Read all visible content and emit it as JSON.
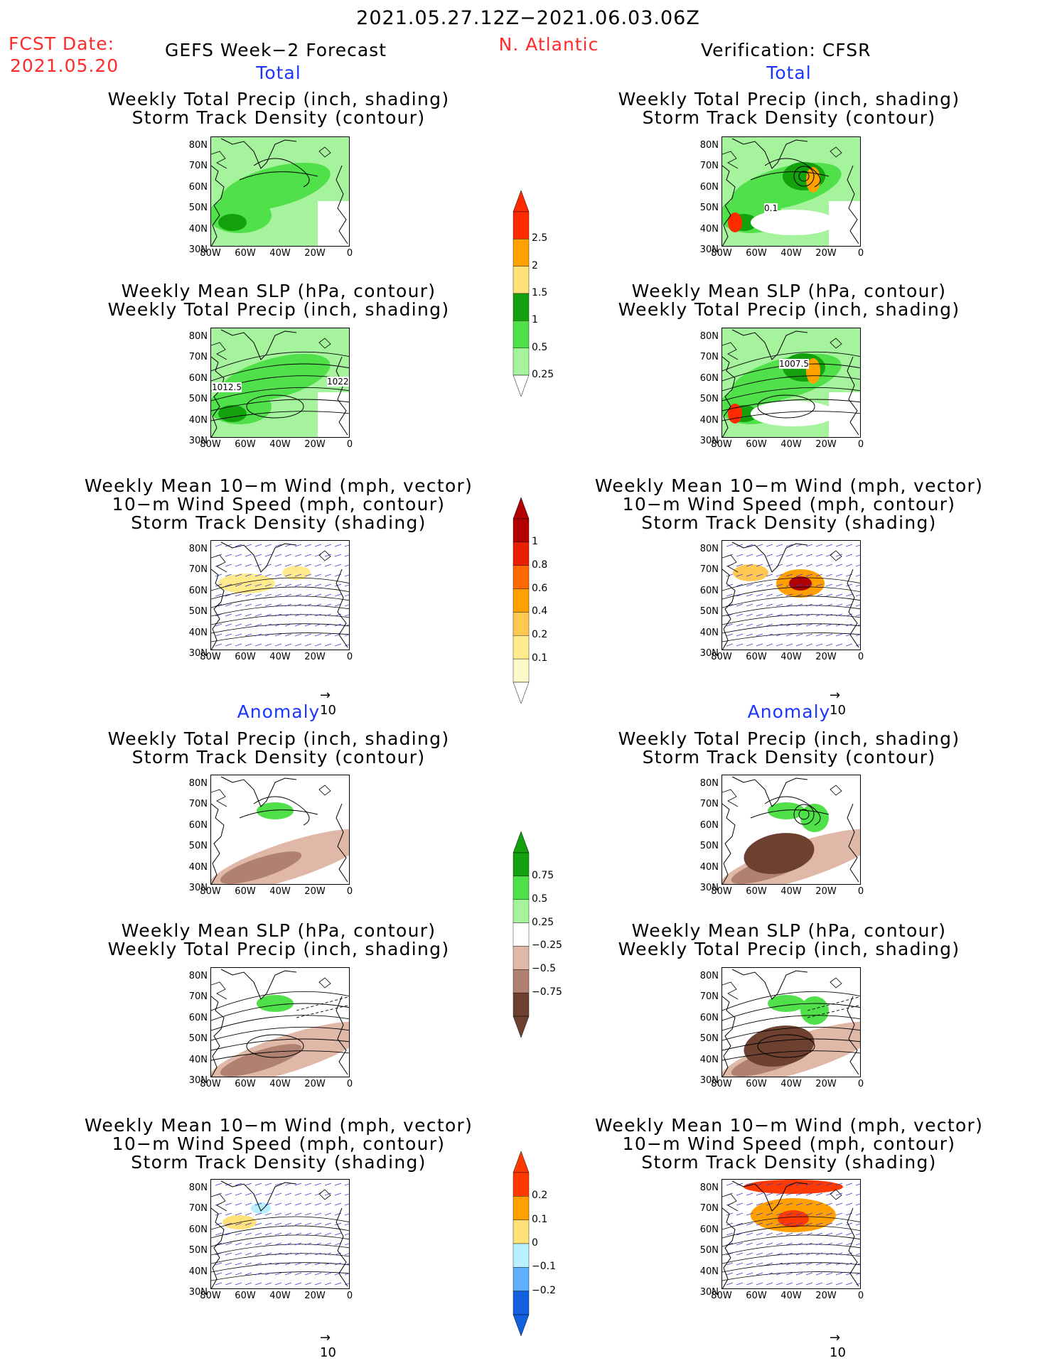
{
  "header": {
    "period": "2021.05.27.12Z−2021.06.03.06Z",
    "fcst_label": "FCST Date:",
    "fcst_date": "2021.05.20",
    "left_title": "GEFS Week−2 Forecast",
    "region": "N. Atlantic",
    "right_title": "Verification: CFSR"
  },
  "sections": {
    "total": "Total",
    "anomaly": "Anomaly"
  },
  "titles": {
    "precip_track": [
      "Weekly Total Precip (inch, shading)",
      "Storm Track Density (contour)"
    ],
    "slp_precip": [
      "Weekly Mean SLP (hPa, contour)",
      "Weekly Total Precip (inch, shading)"
    ],
    "wind_track": [
      "Weekly Mean 10−m Wind (mph, vector)",
      "10−m Wind Speed (mph, contour)",
      "Storm Track Density (shading)"
    ]
  },
  "axes": {
    "lat": [
      "80N",
      "70N",
      "60N",
      "50N",
      "40N",
      "30N"
    ],
    "lon": [
      "80W",
      "60W",
      "40W",
      "20W",
      "0"
    ]
  },
  "contour_labels": {
    "precip_cfsr": "0.1",
    "slp_gefs_left": "1012.5",
    "slp_gefs_right": "1022",
    "slp_cfsr": "1007.5"
  },
  "vector_ref": "10",
  "colorbars": {
    "precip_total": {
      "labels": [
        "2.5",
        "2",
        "1.5",
        "1",
        "0.5",
        "0.25"
      ],
      "colors": [
        "#ff2a00",
        "#ffa200",
        "#ffe17a",
        "#13a10e",
        "#4fe04a",
        "#a6f39e"
      ]
    },
    "track_total": {
      "labels": [
        "1",
        "0.8",
        "0.6",
        "0.4",
        "0.2",
        "0.1"
      ],
      "colors": [
        "#b30000",
        "#e62000",
        "#ff6a00",
        "#ffa000",
        "#ffc850",
        "#ffeb8c",
        "#fff8c8"
      ]
    },
    "precip_anom": {
      "labels": [
        "0.75",
        "0.5",
        "0.25",
        "−0.25",
        "−0.5",
        "−0.75"
      ],
      "colors": [
        "#13a10e",
        "#4fe04a",
        "#a6f39e",
        "#ffffff",
        "#e0b8a8",
        "#b08070",
        "#6e4030"
      ]
    },
    "track_anom": {
      "labels": [
        "0.2",
        "0.1",
        "0",
        "−0.1",
        "−0.2"
      ],
      "colors": [
        "#ff3a00",
        "#ffa000",
        "#ffe17a",
        "#b8f0ff",
        "#60b0ff",
        "#1060e0"
      ]
    }
  }
}
